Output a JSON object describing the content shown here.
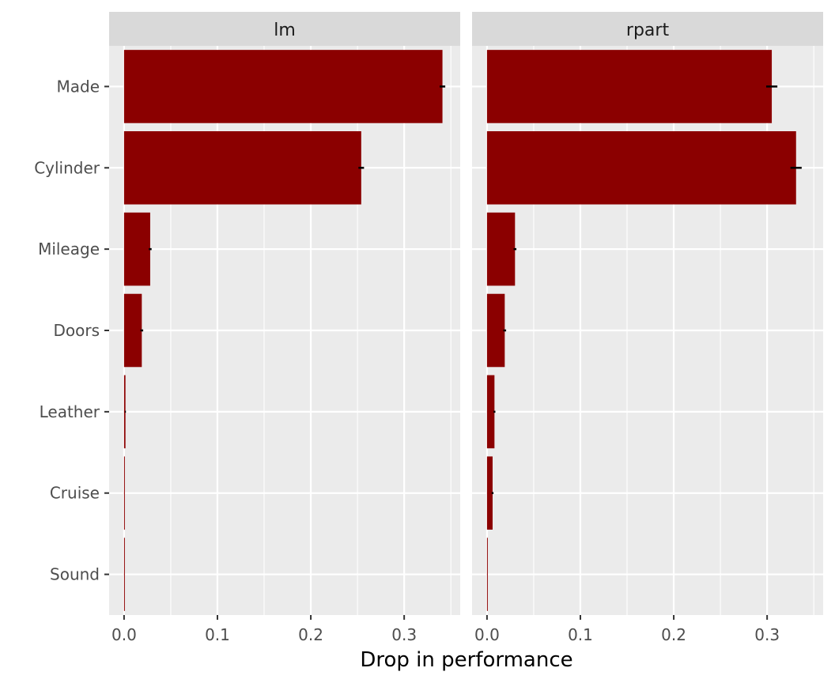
{
  "chart_data": {
    "type": "bar",
    "orientation": "horizontal",
    "xlabel": "Drop in performance",
    "ylabel": "",
    "xlim": [
      -0.016,
      0.36
    ],
    "x_ticks": [
      0.0,
      0.1,
      0.2,
      0.3
    ],
    "x_tick_labels": [
      "0.0",
      "0.1",
      "0.2",
      "0.3"
    ],
    "categories": [
      "Made",
      "Cylinder",
      "Mileage",
      "Doors",
      "Leather",
      "Cruise",
      "Sound"
    ],
    "grid": true,
    "bar_color": "#8b0000",
    "panel_background": "#ebebeb",
    "strip_background": "#d9d9d9",
    "facets": [
      {
        "name": "lm",
        "values": [
          0.341,
          0.254,
          0.028,
          0.019,
          0.0015,
          0.0005,
          0.0001
        ],
        "error": [
          0.003,
          0.003,
          0.0015,
          0.0015,
          0.0005,
          0.0002,
          0.0001
        ]
      },
      {
        "name": "rpart",
        "values": [
          0.305,
          0.331,
          0.03,
          0.019,
          0.008,
          0.006,
          0.0002
        ],
        "error": [
          0.006,
          0.006,
          0.0015,
          0.0015,
          0.001,
          0.001,
          0.0001
        ]
      }
    ]
  }
}
